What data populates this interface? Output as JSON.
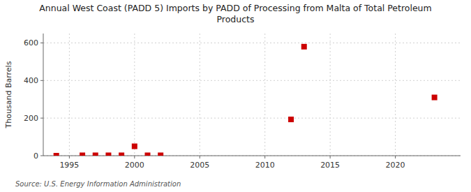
{
  "chart_data": {
    "type": "scatter",
    "title": "Annual West Coast (PADD 5) Imports by PADD of Processing from Malta of Total Petroleum\nProducts",
    "ylabel": "Thousand Barrels",
    "source": "Source: U.S. Energy Information Administration",
    "x": [
      1994,
      1996,
      1997,
      1998,
      1999,
      2000,
      2001,
      2002,
      2012,
      2013,
      2023
    ],
    "values": [
      0,
      2,
      2,
      2,
      2,
      50,
      2,
      2,
      193,
      580,
      310
    ],
    "color": "#cc0000",
    "marker": "square",
    "xlim": [
      1993,
      2025
    ],
    "ylim": [
      0,
      650
    ],
    "xticks": [
      1995,
      2000,
      2005,
      2010,
      2015,
      2020
    ],
    "yticks": [
      0,
      200,
      400,
      600
    ],
    "grid": true
  }
}
